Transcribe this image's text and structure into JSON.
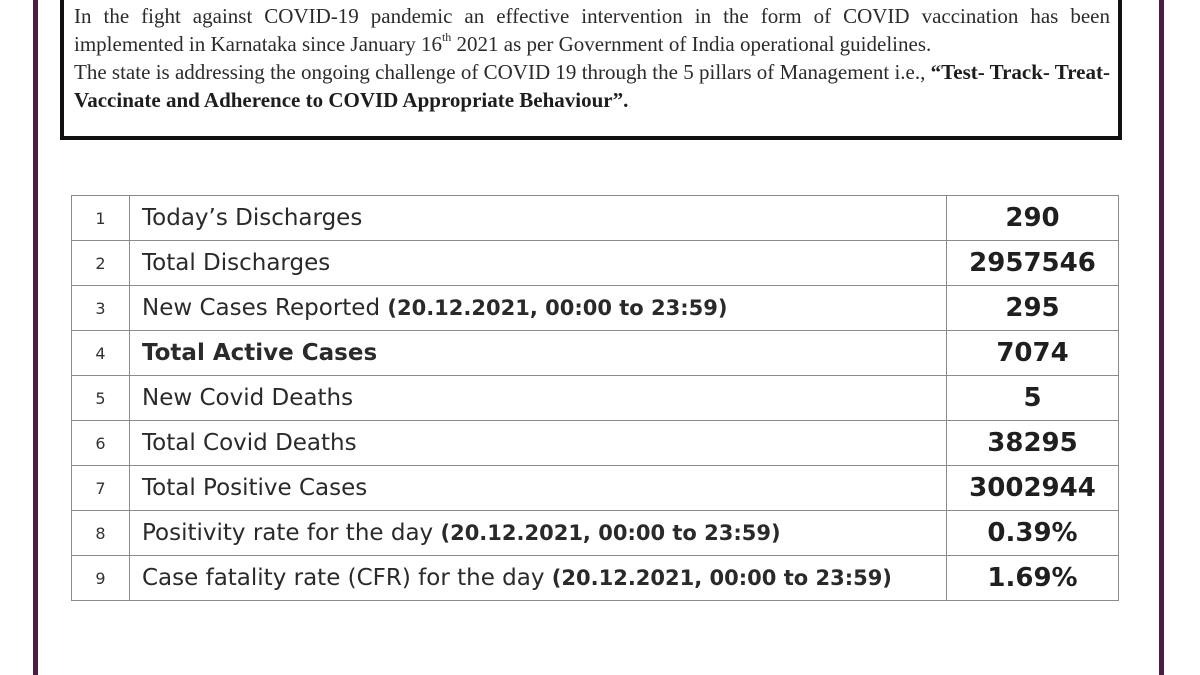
{
  "intro": {
    "line1": "In the fight against COVID-19 pandemic an effective intervention in the form of COVID vaccination has been implemented in Karnataka since January 16",
    "sup": "th",
    "line1_tail": " 2021 as per Government of India operational guidelines.",
    "line2_pre": "The state is addressing the ongoing challenge of COVID 19 through the 5 pillars of Management i.e., ",
    "line2_emph": "“Test- Track- Treat- Vaccinate and Adherence to COVID Appropriate Behaviour”."
  },
  "table": {
    "rows": [
      {
        "num": "1",
        "label": "Today’s Discharges",
        "extra": "",
        "value": "290"
      },
      {
        "num": "2",
        "label": "Total Discharges",
        "extra": "",
        "value": "2957546"
      },
      {
        "num": "3",
        "label": "New Cases Reported ",
        "extra": "(20.12.2021, 00:00 to 23:59)",
        "value": "295"
      },
      {
        "num": "4",
        "label": "Total Active Cases",
        "extra": "",
        "value": "7074"
      },
      {
        "num": "5",
        "label": "New Covid Deaths",
        "extra": "",
        "value": "5"
      },
      {
        "num": "6",
        "label": "Total Covid Deaths",
        "extra": "",
        "value": "38295"
      },
      {
        "num": "7",
        "label": "Total Positive Cases",
        "extra": "",
        "value": "3002944"
      },
      {
        "num": "8",
        "label": "Positivity rate for the day ",
        "extra": "(20.12.2021, 00:00 to 23:59)",
        "value": "0.39%"
      },
      {
        "num": "9",
        "label": "Case fatality rate (CFR) for the day ",
        "extra": "(20.12.2021, 00:00 to 23:59)",
        "value": "1.69%"
      }
    ]
  },
  "colors": {
    "frame": "#4a1e44",
    "box_border": "#111111",
    "table_border": "#8a8a8a"
  }
}
